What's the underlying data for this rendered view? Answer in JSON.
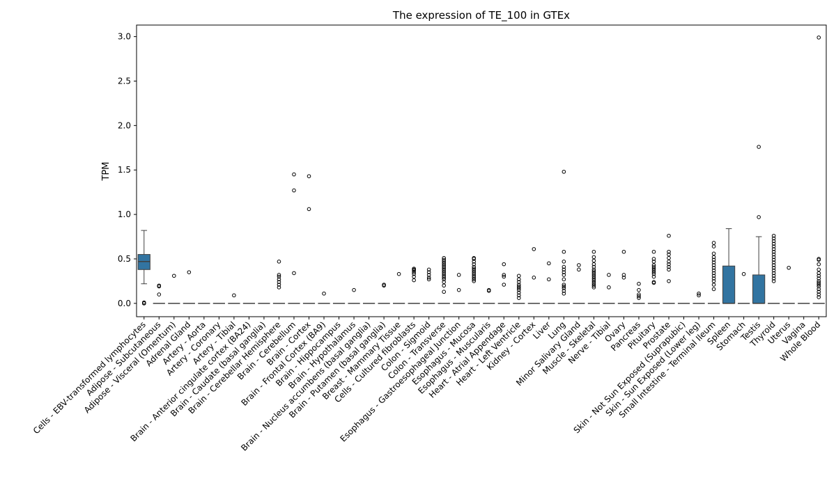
{
  "chart_data": {
    "type": "box",
    "title": "The expression of TE_100 in GTEx",
    "xlabel": "",
    "ylabel": "TPM",
    "ylim": [
      -0.15,
      3.13
    ],
    "yticks": [
      "0.0",
      "0.5",
      "1.0",
      "1.5",
      "2.0",
      "2.5",
      "3.0"
    ],
    "grid": false,
    "box_color": "#3274a1",
    "categories": [
      "Cells - EBV-transformed lymphocytes",
      "Adipose - Subcutaneous",
      "Adipose - Visceral (Omentum)",
      "Adrenal Gland",
      "Artery - Aorta",
      "Artery - Coronary",
      "Artery - Tibial",
      "Brain - Anterior cingulate cortex (BA24)",
      "Brain - Caudate (basal ganglia)",
      "Brain - Cerebellar Hemisphere",
      "Brain - Cerebellum",
      "Brain - Cortex",
      "Brain - Frontal Cortex (BA9)",
      "Brain - Hippocampus",
      "Brain - Hypothalamus",
      "Brain - Nucleus accumbens (basal ganglia)",
      "Brain - Putamen (basal ganglia)",
      "Breast - Mammary Tissue",
      "Cells - Cultured fibroblasts",
      "Colon - Sigmoid",
      "Colon - Transverse",
      "Esophagus - Gastroesophageal Junction",
      "Esophagus - Mucosa",
      "Esophagus - Muscularis",
      "Heart - Atrial Appendage",
      "Heart - Left Ventricle",
      "Kidney - Cortex",
      "Liver",
      "Lung",
      "Minor Salivary Gland",
      "Muscle - Skeletal",
      "Nerve - Tibial",
      "Ovary",
      "Pancreas",
      "Pituitary",
      "Prostate",
      "Skin - Not Sun Exposed (Suprapubic)",
      "Skin - Sun Exposed (Lower leg)",
      "Small Intestine - Terminal Ileum",
      "Spleen",
      "Stomach",
      "Testis",
      "Thyroid",
      "Uterus",
      "Vagina",
      "Whole Blood"
    ],
    "boxes": [
      {
        "q1": 0.38,
        "median": 0.47,
        "q3": 0.55,
        "wlo": 0.22,
        "whi": 0.82,
        "outliers": [
          0.0,
          0.0,
          0.01
        ]
      },
      {
        "q1": 0,
        "median": 0,
        "q3": 0,
        "wlo": 0,
        "whi": 0,
        "outliers": [
          0.1,
          0.19,
          0.2
        ]
      },
      {
        "q1": 0,
        "median": 0,
        "q3": 0,
        "wlo": 0,
        "whi": 0,
        "outliers": [
          0.31
        ]
      },
      {
        "q1": 0,
        "median": 0,
        "q3": 0,
        "wlo": 0,
        "whi": 0,
        "outliers": [
          0.35
        ]
      },
      {
        "q1": 0,
        "median": 0,
        "q3": 0,
        "wlo": 0,
        "whi": 0,
        "outliers": []
      },
      {
        "q1": 0,
        "median": 0,
        "q3": 0,
        "wlo": 0,
        "whi": 0,
        "outliers": []
      },
      {
        "q1": 0,
        "median": 0,
        "q3": 0,
        "wlo": 0,
        "whi": 0,
        "outliers": [
          0.09
        ]
      },
      {
        "q1": 0,
        "median": 0,
        "q3": 0,
        "wlo": 0,
        "whi": 0,
        "outliers": []
      },
      {
        "q1": 0,
        "median": 0,
        "q3": 0,
        "wlo": 0,
        "whi": 0,
        "outliers": []
      },
      {
        "q1": 0,
        "median": 0,
        "q3": 0,
        "wlo": 0,
        "whi": 0,
        "outliers": [
          0.18,
          0.21,
          0.24,
          0.27,
          0.3,
          0.32,
          0.47
        ]
      },
      {
        "q1": 0,
        "median": 0,
        "q3": 0,
        "wlo": 0,
        "whi": 0,
        "outliers": [
          0.34,
          1.27,
          1.45
        ]
      },
      {
        "q1": 0,
        "median": 0,
        "q3": 0,
        "wlo": 0,
        "whi": 0,
        "outliers": [
          1.06,
          1.43
        ]
      },
      {
        "q1": 0,
        "median": 0,
        "q3": 0,
        "wlo": 0,
        "whi": 0,
        "outliers": [
          0.11
        ]
      },
      {
        "q1": 0,
        "median": 0,
        "q3": 0,
        "wlo": 0,
        "whi": 0,
        "outliers": []
      },
      {
        "q1": 0,
        "median": 0,
        "q3": 0,
        "wlo": 0,
        "whi": 0,
        "outliers": [
          0.15
        ]
      },
      {
        "q1": 0,
        "median": 0,
        "q3": 0,
        "wlo": 0,
        "whi": 0,
        "outliers": []
      },
      {
        "q1": 0,
        "median": 0,
        "q3": 0,
        "wlo": 0,
        "whi": 0,
        "outliers": [
          0.2,
          0.21
        ]
      },
      {
        "q1": 0,
        "median": 0,
        "q3": 0,
        "wlo": 0,
        "whi": 0,
        "outliers": [
          0.33
        ]
      },
      {
        "q1": 0,
        "median": 0,
        "q3": 0,
        "wlo": 0,
        "whi": 0,
        "outliers": [
          0.26,
          0.3,
          0.33,
          0.35,
          0.37,
          0.38,
          0.39
        ]
      },
      {
        "q1": 0,
        "median": 0,
        "q3": 0,
        "wlo": 0,
        "whi": 0,
        "outliers": [
          0.27,
          0.29,
          0.32,
          0.35,
          0.38
        ]
      },
      {
        "q1": 0,
        "median": 0,
        "q3": 0,
        "wlo": 0,
        "whi": 0,
        "outliers": [
          0.13,
          0.2,
          0.24,
          0.27,
          0.29,
          0.31,
          0.33,
          0.35,
          0.37,
          0.39,
          0.41,
          0.43,
          0.45,
          0.47,
          0.49,
          0.51
        ]
      },
      {
        "q1": 0,
        "median": 0,
        "q3": 0,
        "wlo": 0,
        "whi": 0,
        "outliers": [
          0.15,
          0.32
        ]
      },
      {
        "q1": 0,
        "median": 0,
        "q3": 0,
        "wlo": 0,
        "whi": 0,
        "outliers": [
          0.25,
          0.27,
          0.29,
          0.31,
          0.33,
          0.35,
          0.37,
          0.39,
          0.41,
          0.44,
          0.47,
          0.5,
          0.51
        ]
      },
      {
        "q1": 0,
        "median": 0,
        "q3": 0,
        "wlo": 0,
        "whi": 0,
        "outliers": [
          0.14,
          0.15
        ]
      },
      {
        "q1": 0,
        "median": 0,
        "q3": 0,
        "wlo": 0,
        "whi": 0,
        "outliers": [
          0.21,
          0.3,
          0.32,
          0.44
        ]
      },
      {
        "q1": 0,
        "median": 0,
        "q3": 0,
        "wlo": 0,
        "whi": 0,
        "outliers": [
          0.06,
          0.09,
          0.12,
          0.15,
          0.17,
          0.19,
          0.21,
          0.24,
          0.27,
          0.31
        ]
      },
      {
        "q1": 0,
        "median": 0,
        "q3": 0,
        "wlo": 0,
        "whi": 0,
        "outliers": [
          0.29,
          0.61
        ]
      },
      {
        "q1": 0,
        "median": 0,
        "q3": 0,
        "wlo": 0,
        "whi": 0,
        "outliers": [
          0.27,
          0.45
        ]
      },
      {
        "q1": 0,
        "median": 0,
        "q3": 0,
        "wlo": 0,
        "whi": 0,
        "outliers": [
          0.11,
          0.14,
          0.17,
          0.19,
          0.21,
          0.27,
          0.32,
          0.35,
          0.38,
          0.41,
          0.47,
          0.58,
          1.48
        ]
      },
      {
        "q1": 0,
        "median": 0,
        "q3": 0,
        "wlo": 0,
        "whi": 0,
        "outliers": [
          0.38,
          0.43
        ]
      },
      {
        "q1": 0,
        "median": 0,
        "q3": 0,
        "wlo": 0,
        "whi": 0,
        "outliers": [
          0.18,
          0.2,
          0.22,
          0.24,
          0.26,
          0.28,
          0.3,
          0.32,
          0.34,
          0.36,
          0.38,
          0.41,
          0.44,
          0.48,
          0.52,
          0.58
        ]
      },
      {
        "q1": 0,
        "median": 0,
        "q3": 0,
        "wlo": 0,
        "whi": 0,
        "outliers": [
          0.18,
          0.32
        ]
      },
      {
        "q1": 0,
        "median": 0,
        "q3": 0,
        "wlo": 0,
        "whi": 0,
        "outliers": [
          0.29,
          0.32,
          0.58
        ]
      },
      {
        "q1": 0,
        "median": 0,
        "q3": 0,
        "wlo": 0,
        "whi": 0,
        "outliers": [
          0.06,
          0.08,
          0.1,
          0.15,
          0.22
        ]
      },
      {
        "q1": 0,
        "median": 0,
        "q3": 0,
        "wlo": 0,
        "whi": 0,
        "outliers": [
          0.23,
          0.24,
          0.3,
          0.33,
          0.35,
          0.37,
          0.39,
          0.41,
          0.43,
          0.47,
          0.5,
          0.58
        ]
      },
      {
        "q1": 0,
        "median": 0,
        "q3": 0,
        "wlo": 0,
        "whi": 0,
        "outliers": [
          0.25,
          0.38,
          0.41,
          0.44,
          0.47,
          0.51,
          0.55,
          0.58,
          0.76
        ]
      },
      {
        "q1": 0,
        "median": 0,
        "q3": 0,
        "wlo": 0,
        "whi": 0,
        "outliers": []
      },
      {
        "q1": 0,
        "median": 0,
        "q3": 0,
        "wlo": 0,
        "whi": 0,
        "outliers": [
          0.09,
          0.11
        ]
      },
      {
        "q1": 0,
        "median": 0,
        "q3": 0,
        "wlo": 0,
        "whi": 0,
        "outliers": [
          0.16,
          0.21,
          0.25,
          0.28,
          0.31,
          0.34,
          0.37,
          0.4,
          0.43,
          0.46,
          0.49,
          0.52,
          0.56,
          0.64,
          0.68
        ]
      },
      {
        "q1": 0,
        "median": 0,
        "q3": 0.42,
        "wlo": 0,
        "whi": 0.84,
        "outliers": []
      },
      {
        "q1": 0,
        "median": 0,
        "q3": 0,
        "wlo": 0,
        "whi": 0,
        "outliers": [
          0.33
        ]
      },
      {
        "q1": 0,
        "median": 0,
        "q3": 0.32,
        "wlo": 0,
        "whi": 0.75,
        "outliers": [
          0.97,
          1.76
        ]
      },
      {
        "q1": 0,
        "median": 0,
        "q3": 0,
        "wlo": 0,
        "whi": 0,
        "outliers": [
          0.25,
          0.28,
          0.31,
          0.34,
          0.37,
          0.4,
          0.43,
          0.46,
          0.49,
          0.52,
          0.55,
          0.58,
          0.61,
          0.64,
          0.67,
          0.7,
          0.73,
          0.76
        ]
      },
      {
        "q1": 0,
        "median": 0,
        "q3": 0,
        "wlo": 0,
        "whi": 0,
        "outliers": [
          0.4
        ]
      },
      {
        "q1": 0,
        "median": 0,
        "q3": 0,
        "wlo": 0,
        "whi": 0,
        "outliers": []
      },
      {
        "q1": 0,
        "median": 0,
        "q3": 0,
        "wlo": 0,
        "whi": 0,
        "outliers": [
          0.07,
          0.1,
          0.13,
          0.16,
          0.19,
          0.21,
          0.23,
          0.25,
          0.28,
          0.31,
          0.34,
          0.38,
          0.44,
          0.49,
          0.5,
          2.99
        ]
      }
    ]
  }
}
